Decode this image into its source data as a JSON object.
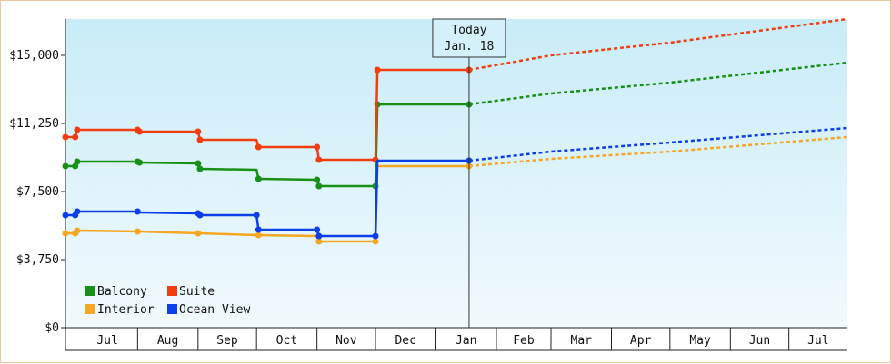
{
  "chart_data": {
    "type": "line",
    "y_ticks": [
      {
        "value": 0,
        "label": "$0"
      },
      {
        "value": 3750,
        "label": "$3,750"
      },
      {
        "value": 7500,
        "label": "$7,500"
      },
      {
        "value": 11250,
        "label": "$11,250"
      },
      {
        "value": 15000,
        "label": "$15,000"
      }
    ],
    "ylim": [
      0,
      17000
    ],
    "x_range": [
      "2013-06-25",
      "2014-07-31"
    ],
    "x_ticks": [
      {
        "label": "Jul",
        "start": "2013-07-01",
        "end": "2013-08-01"
      },
      {
        "label": "Aug",
        "start": "2013-08-01",
        "end": "2013-09-01"
      },
      {
        "label": "Sep",
        "start": "2013-09-01",
        "end": "2013-10-01"
      },
      {
        "label": "Oct",
        "start": "2013-10-01",
        "end": "2013-11-01"
      },
      {
        "label": "Nov",
        "start": "2013-11-01",
        "end": "2013-12-01"
      },
      {
        "label": "Dec",
        "start": "2013-12-01",
        "end": "2014-01-01"
      },
      {
        "label": "Jan",
        "start": "2014-01-01",
        "end": "2014-02-01"
      },
      {
        "label": "Feb",
        "start": "2014-02-01",
        "end": "2014-03-01"
      },
      {
        "label": "Mar",
        "start": "2014-03-01",
        "end": "2014-04-01"
      },
      {
        "label": "Apr",
        "start": "2014-04-01",
        "end": "2014-05-01"
      },
      {
        "label": "May",
        "start": "2014-05-01",
        "end": "2014-06-01"
      },
      {
        "label": "Jun",
        "start": "2014-06-01",
        "end": "2014-07-01"
      },
      {
        "label": "Jul",
        "start": "2014-07-01",
        "end": "2014-07-31"
      }
    ],
    "today": {
      "line1": "Today",
      "line2": "Jan. 18",
      "date": "2014-01-18"
    },
    "grid": false,
    "legend_position": "bottom-left",
    "series": [
      {
        "name": "Balcony",
        "color": "#169016",
        "points": [
          [
            "2013-06-25",
            8900
          ],
          [
            "2013-06-30",
            8900
          ],
          [
            "2013-07-01",
            9150
          ],
          [
            "2013-08-01",
            9150
          ],
          [
            "2013-08-02",
            9100
          ],
          [
            "2013-09-01",
            9050
          ],
          [
            "2013-09-02",
            8750
          ],
          [
            "2013-10-01",
            8700
          ],
          [
            "2013-10-02",
            8200
          ],
          [
            "2013-11-01",
            8150
          ],
          [
            "2013-11-02",
            7800
          ],
          [
            "2013-12-01",
            7800
          ],
          [
            "2013-12-02",
            12300
          ],
          [
            "2014-01-18",
            12300
          ]
        ],
        "forecast": [
          [
            "2014-01-18",
            12300
          ],
          [
            "2014-03-01",
            12900
          ],
          [
            "2014-05-01",
            13500
          ],
          [
            "2014-07-31",
            14600
          ]
        ]
      },
      {
        "name": "Suite",
        "color": "#f03e10",
        "points": [
          [
            "2013-06-25",
            10500
          ],
          [
            "2013-06-30",
            10500
          ],
          [
            "2013-07-01",
            10900
          ],
          [
            "2013-08-01",
            10900
          ],
          [
            "2013-08-02",
            10800
          ],
          [
            "2013-09-01",
            10800
          ],
          [
            "2013-09-02",
            10350
          ],
          [
            "2013-10-01",
            10350
          ],
          [
            "2013-10-02",
            9950
          ],
          [
            "2013-11-01",
            9950
          ],
          [
            "2013-11-02",
            9250
          ],
          [
            "2013-12-01",
            9250
          ],
          [
            "2013-12-02",
            14200
          ],
          [
            "2014-01-18",
            14200
          ]
        ],
        "forecast": [
          [
            "2014-01-18",
            14200
          ],
          [
            "2014-03-01",
            15000
          ],
          [
            "2014-05-01",
            15700
          ],
          [
            "2014-07-31",
            17000
          ]
        ]
      },
      {
        "name": "Interior",
        "color": "#f5a623",
        "points": [
          [
            "2013-06-25",
            5200
          ],
          [
            "2013-06-30",
            5200
          ],
          [
            "2013-07-01",
            5350
          ],
          [
            "2013-08-01",
            5300
          ],
          [
            "2013-08-02",
            5300
          ],
          [
            "2013-09-01",
            5200
          ],
          [
            "2013-09-02",
            5200
          ],
          [
            "2013-10-01",
            5100
          ],
          [
            "2013-10-02",
            5100
          ],
          [
            "2013-11-01",
            5050
          ],
          [
            "2013-11-02",
            4750
          ],
          [
            "2013-12-01",
            4750
          ],
          [
            "2013-12-02",
            8900
          ],
          [
            "2014-01-18",
            8900
          ]
        ],
        "forecast": [
          [
            "2014-01-18",
            8900
          ],
          [
            "2014-03-01",
            9300
          ],
          [
            "2014-05-01",
            9700
          ],
          [
            "2014-07-31",
            10500
          ]
        ]
      },
      {
        "name": "Ocean View",
        "color": "#0d3fe8",
        "points": [
          [
            "2013-06-25",
            6200
          ],
          [
            "2013-06-30",
            6200
          ],
          [
            "2013-07-01",
            6400
          ],
          [
            "2013-08-01",
            6400
          ],
          [
            "2013-08-02",
            6350
          ],
          [
            "2013-09-01",
            6300
          ],
          [
            "2013-09-02",
            6200
          ],
          [
            "2013-10-01",
            6200
          ],
          [
            "2013-10-02",
            5400
          ],
          [
            "2013-11-01",
            5400
          ],
          [
            "2013-11-02",
            5050
          ],
          [
            "2013-12-01",
            5050
          ],
          [
            "2013-12-02",
            9200
          ],
          [
            "2014-01-18",
            9200
          ]
        ],
        "forecast": [
          [
            "2014-01-18",
            9200
          ],
          [
            "2014-03-01",
            9700
          ],
          [
            "2014-05-01",
            10200
          ],
          [
            "2014-07-31",
            11000
          ]
        ]
      }
    ],
    "markers": {
      "Balcony": [
        [
          "2013-06-25",
          8900
        ],
        [
          "2013-06-30",
          8900
        ],
        [
          "2013-07-01",
          9150
        ],
        [
          "2013-08-01",
          9150
        ],
        [
          "2013-08-02",
          9100
        ],
        [
          "2013-09-01",
          9050
        ],
        [
          "2013-09-02",
          8750
        ],
        [
          "2013-10-02",
          8200
        ],
        [
          "2013-11-01",
          8150
        ],
        [
          "2013-11-02",
          7800
        ],
        [
          "2013-12-01",
          7800
        ],
        [
          "2013-12-02",
          12300
        ],
        [
          "2014-01-18",
          12300
        ]
      ],
      "Suite": [
        [
          "2013-06-25",
          10500
        ],
        [
          "2013-06-30",
          10500
        ],
        [
          "2013-07-01",
          10900
        ],
        [
          "2013-08-01",
          10900
        ],
        [
          "2013-08-02",
          10800
        ],
        [
          "2013-09-01",
          10800
        ],
        [
          "2013-09-02",
          10350
        ],
        [
          "2013-10-02",
          9950
        ],
        [
          "2013-11-01",
          9950
        ],
        [
          "2013-11-02",
          9250
        ],
        [
          "2013-12-01",
          9250
        ],
        [
          "2013-12-02",
          14200
        ],
        [
          "2014-01-18",
          14200
        ]
      ],
      "Interior": [
        [
          "2013-06-25",
          5200
        ],
        [
          "2013-06-30",
          5200
        ],
        [
          "2013-07-01",
          5350
        ],
        [
          "2013-08-01",
          5300
        ],
        [
          "2013-09-01",
          5200
        ],
        [
          "2013-10-02",
          5100
        ],
        [
          "2013-11-02",
          4750
        ],
        [
          "2013-12-01",
          4750
        ],
        [
          "2014-01-18",
          8900
        ]
      ],
      "Ocean View": [
        [
          "2013-06-25",
          6200
        ],
        [
          "2013-06-30",
          6200
        ],
        [
          "2013-07-01",
          6400
        ],
        [
          "2013-08-01",
          6400
        ],
        [
          "2013-09-01",
          6300
        ],
        [
          "2013-09-02",
          6200
        ],
        [
          "2013-10-01",
          6200
        ],
        [
          "2013-10-02",
          5400
        ],
        [
          "2013-11-01",
          5400
        ],
        [
          "2013-11-02",
          5050
        ],
        [
          "2013-12-01",
          5050
        ],
        [
          "2014-01-18",
          9200
        ]
      ]
    }
  },
  "colors": {
    "plot_bg_top": "#c9ecf8",
    "plot_bg_bottom": "#f1fafd",
    "frame_border": "#e8c89a"
  }
}
